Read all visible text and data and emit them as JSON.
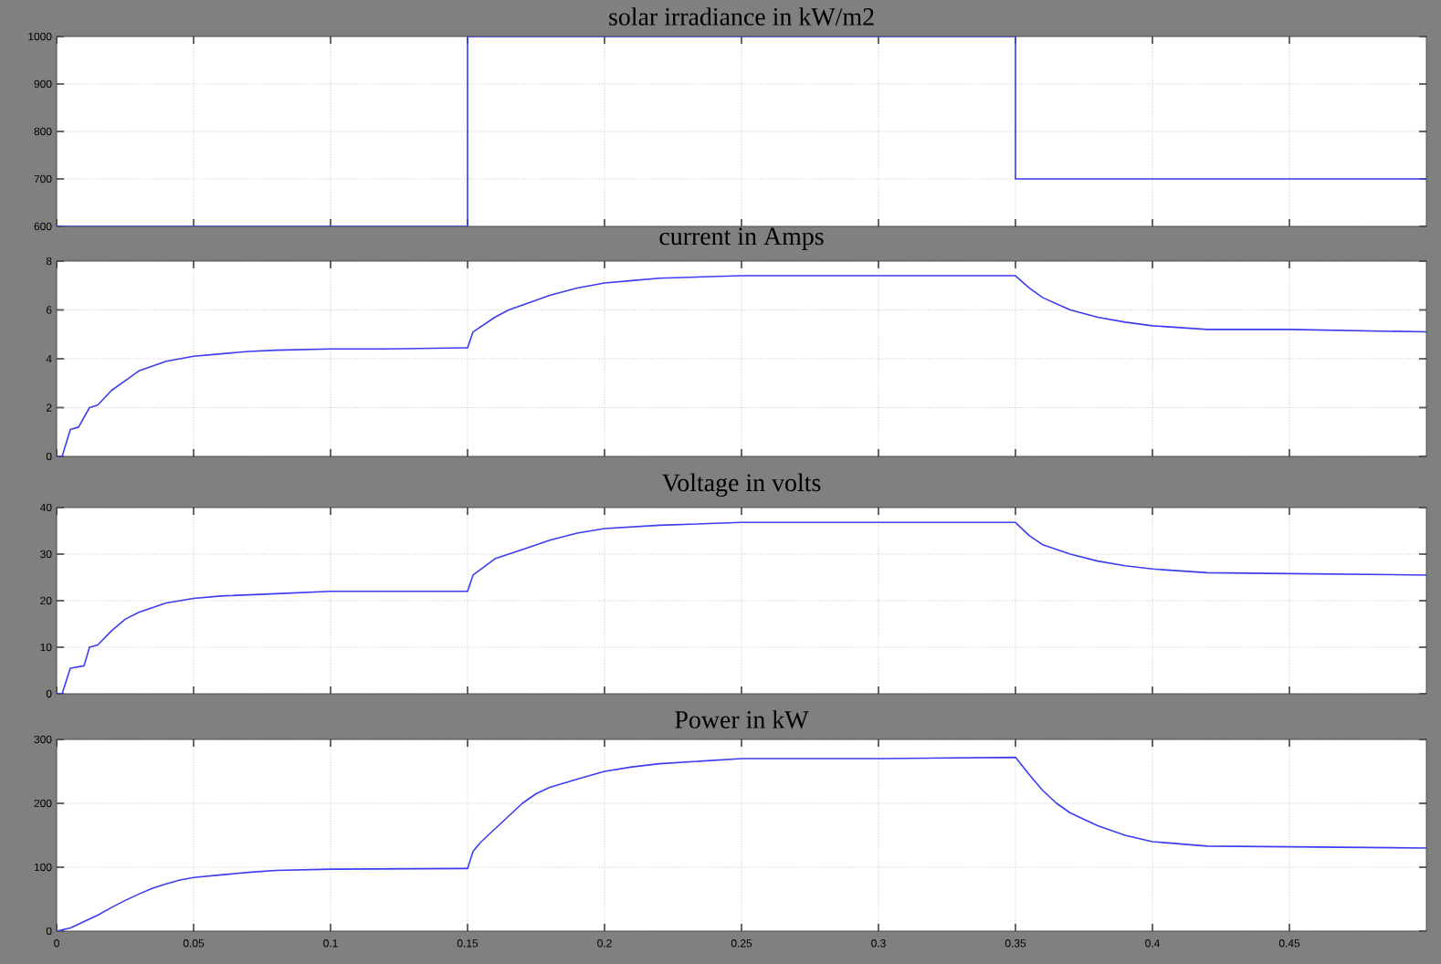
{
  "chart_data": [
    {
      "type": "step",
      "title": "solar irradiance in kW/m2",
      "x": [
        0,
        0.15,
        0.35,
        0.5
      ],
      "values": [
        600,
        1000,
        700,
        700
      ],
      "color": "#3c3cf0",
      "xlim": [
        0,
        0.5
      ],
      "ylim": [
        600,
        1000
      ],
      "xticks": [
        0,
        0.05,
        0.1,
        0.15,
        0.2,
        0.25,
        0.3,
        0.35,
        0.4,
        0.45
      ],
      "yticks": [
        600,
        700,
        800,
        900,
        1000
      ],
      "grid": true,
      "tick_labels": "y"
    },
    {
      "type": "line",
      "title": "current in Amps",
      "x": [
        0,
        0.002,
        0.005,
        0.008,
        0.012,
        0.015,
        0.02,
        0.025,
        0.03,
        0.035,
        0.04,
        0.045,
        0.05,
        0.06,
        0.07,
        0.08,
        0.1,
        0.12,
        0.15,
        0.152,
        0.16,
        0.165,
        0.17,
        0.18,
        0.19,
        0.2,
        0.21,
        0.22,
        0.25,
        0.3,
        0.35,
        0.355,
        0.36,
        0.37,
        0.38,
        0.39,
        0.4,
        0.42,
        0.45,
        0.5
      ],
      "values": [
        0,
        0,
        1.1,
        1.2,
        2.0,
        2.1,
        2.7,
        3.1,
        3.5,
        3.7,
        3.9,
        4.0,
        4.1,
        4.2,
        4.3,
        4.35,
        4.4,
        4.4,
        4.45,
        5.1,
        5.7,
        6.0,
        6.2,
        6.6,
        6.9,
        7.1,
        7.2,
        7.3,
        7.4,
        7.4,
        7.4,
        6.9,
        6.5,
        6.0,
        5.7,
        5.5,
        5.35,
        5.2,
        5.2,
        5.1
      ],
      "color": "#3c3cf0",
      "xlim": [
        0,
        0.5
      ],
      "ylim": [
        0,
        8
      ],
      "xticks": [
        0,
        0.05,
        0.1,
        0.15,
        0.2,
        0.25,
        0.3,
        0.35,
        0.4,
        0.45
      ],
      "yticks": [
        0,
        2,
        4,
        6,
        8
      ],
      "grid": true,
      "tick_labels": "y"
    },
    {
      "type": "line",
      "title": "Voltage in volts",
      "x": [
        0,
        0.002,
        0.005,
        0.01,
        0.012,
        0.015,
        0.02,
        0.025,
        0.03,
        0.035,
        0.04,
        0.05,
        0.06,
        0.08,
        0.1,
        0.15,
        0.152,
        0.16,
        0.17,
        0.18,
        0.19,
        0.2,
        0.22,
        0.25,
        0.35,
        0.355,
        0.36,
        0.37,
        0.38,
        0.39,
        0.4,
        0.42,
        0.45,
        0.5
      ],
      "values": [
        0,
        0,
        5.5,
        6,
        10,
        10.5,
        13.5,
        16,
        17.5,
        18.5,
        19.5,
        20.5,
        21,
        21.5,
        22,
        22,
        25.5,
        29,
        31,
        33,
        34.5,
        35.5,
        36.2,
        36.8,
        36.8,
        34,
        32,
        30,
        28.5,
        27.5,
        26.8,
        26,
        25.8,
        25.5
      ],
      "color": "#3c3cf0",
      "xlim": [
        0,
        0.5
      ],
      "ylim": [
        0,
        40
      ],
      "xticks": [
        0,
        0.05,
        0.1,
        0.15,
        0.2,
        0.25,
        0.3,
        0.35,
        0.4,
        0.45
      ],
      "yticks": [
        0,
        10,
        20,
        30,
        40
      ],
      "grid": true,
      "tick_labels": "y"
    },
    {
      "type": "line",
      "title": "Power in kW",
      "x": [
        0,
        0.005,
        0.01,
        0.015,
        0.02,
        0.025,
        0.03,
        0.035,
        0.04,
        0.045,
        0.05,
        0.06,
        0.07,
        0.08,
        0.1,
        0.15,
        0.152,
        0.155,
        0.16,
        0.165,
        0.17,
        0.175,
        0.18,
        0.19,
        0.2,
        0.21,
        0.22,
        0.25,
        0.3,
        0.35,
        0.355,
        0.36,
        0.365,
        0.37,
        0.38,
        0.39,
        0.4,
        0.42,
        0.45,
        0.5
      ],
      "values": [
        0,
        5,
        15,
        25,
        37,
        48,
        58,
        67,
        74,
        80,
        84,
        88,
        92,
        95,
        97,
        98,
        125,
        140,
        160,
        180,
        200,
        215,
        225,
        238,
        250,
        257,
        262,
        270,
        270,
        272,
        245,
        220,
        200,
        185,
        165,
        150,
        140,
        133,
        132,
        130
      ],
      "color": "#3c3cf0",
      "xlim": [
        0,
        0.5
      ],
      "ylim": [
        0,
        300
      ],
      "xticks": [
        0,
        0.05,
        0.1,
        0.15,
        0.2,
        0.25,
        0.3,
        0.35,
        0.4,
        0.45
      ],
      "yticks": [
        0,
        100,
        200,
        300
      ],
      "grid": true
    }
  ]
}
